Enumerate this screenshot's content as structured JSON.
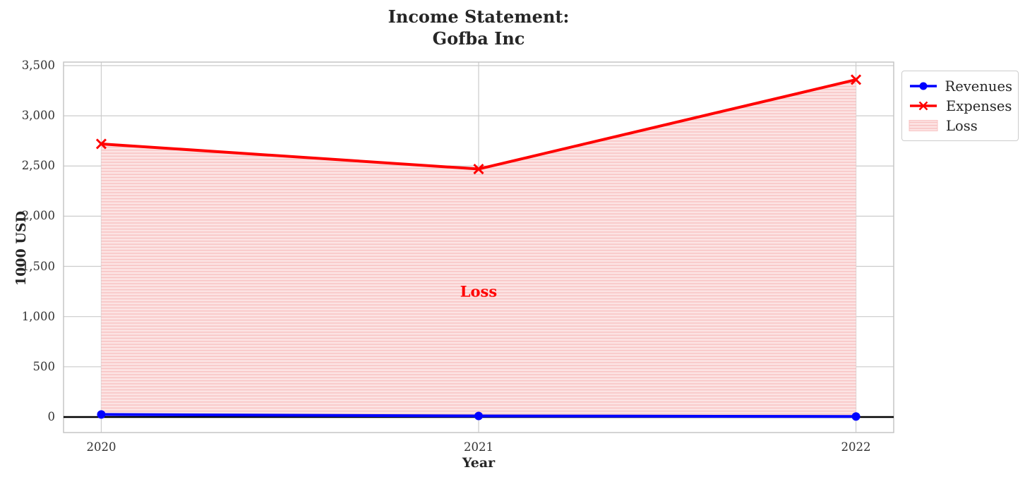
{
  "chart_data": {
    "type": "line",
    "title": "Income Statement:\nGofba Inc",
    "title_lines": [
      "Income Statement:",
      "Gofba Inc"
    ],
    "xlabel": "Year",
    "ylabel": "1000 USD",
    "x": [
      2020,
      2021,
      2022
    ],
    "x_tick_labels": [
      "2020",
      "2021",
      "2022"
    ],
    "y_ticks": [
      0,
      500,
      1000,
      1500,
      2000,
      2500,
      3000,
      3500
    ],
    "y_tick_labels": [
      "0",
      "500",
      "1,000",
      "1,500",
      "2,000",
      "2,500",
      "3,000",
      "3,500"
    ],
    "xlim": [
      2019.9,
      2022.1
    ],
    "ylim": [
      -155,
      3535
    ],
    "grid": true,
    "series": [
      {
        "name": "Revenues",
        "values": [
          25,
          10,
          5
        ],
        "color": "#0000ff",
        "marker": "circle",
        "line_width": 4
      },
      {
        "name": "Expenses",
        "values": [
          2720,
          2470,
          3360
        ],
        "color": "#ff0000",
        "marker": "x",
        "line_width": 4
      }
    ],
    "fill_between": {
      "label": "Loss",
      "between": [
        "Revenues",
        "Expenses"
      ],
      "base_color": "#fce4e4",
      "hatch_color": "#f8c3c3",
      "hatch_style": "horizontal-lines"
    },
    "annotation": {
      "text": "Loss",
      "x": 2021,
      "y": 1250,
      "color": "#ff0000"
    },
    "zero_line_color": "#000000",
    "colors": {
      "grid": "#cccccc",
      "spine": "#c2c2c2",
      "text": "#262626"
    },
    "legend": {
      "location": "upper right, outside axes",
      "items": [
        {
          "label": "Revenues",
          "type": "line",
          "color": "#0000ff",
          "marker": "circle"
        },
        {
          "label": "Expenses",
          "type": "line",
          "color": "#ff0000",
          "marker": "x"
        },
        {
          "label": "Loss",
          "type": "patch",
          "fill": "#fce4e4",
          "hatch": "#f8c3c3"
        }
      ]
    }
  }
}
